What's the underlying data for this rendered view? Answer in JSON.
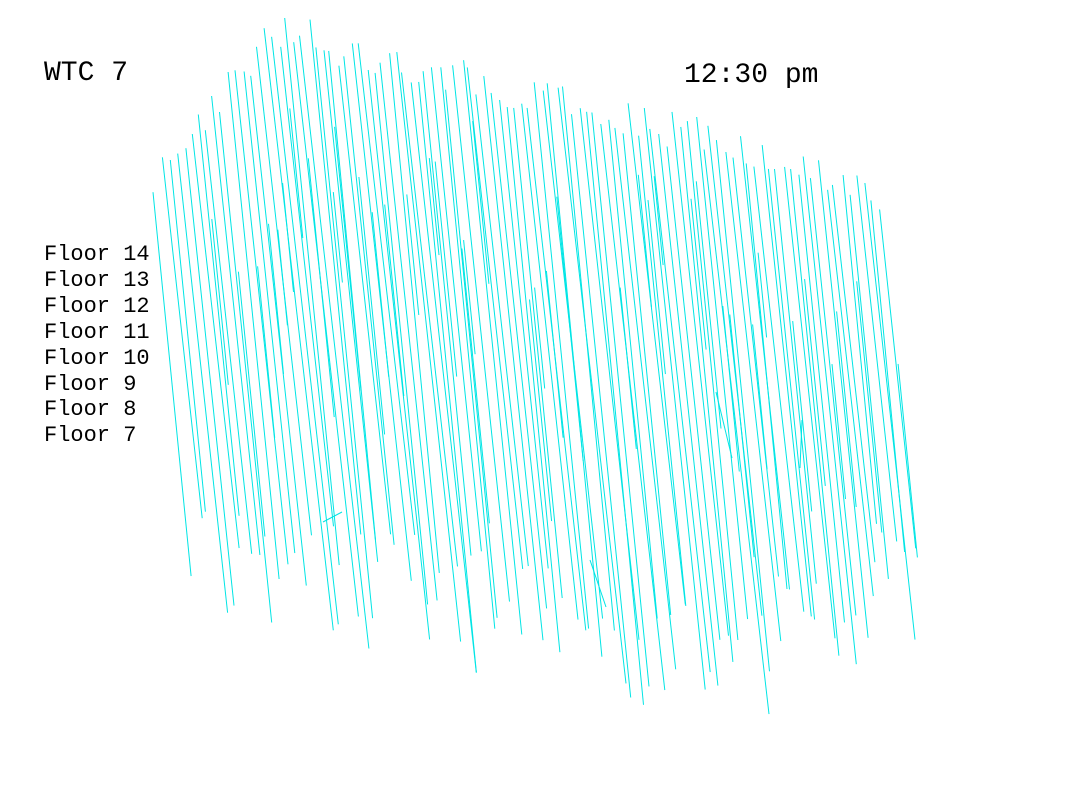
{
  "title": "WTC 7",
  "time": "12:30 pm",
  "floors": [
    "Floor 14",
    "Floor 13",
    "Floor 12",
    "Floor 11",
    "Floor 10",
    "Floor 9",
    "Floor 8",
    "Floor 7"
  ],
  "colors": {
    "line": "#00e5e5",
    "background": "#ffffff",
    "text": "#000000"
  }
}
